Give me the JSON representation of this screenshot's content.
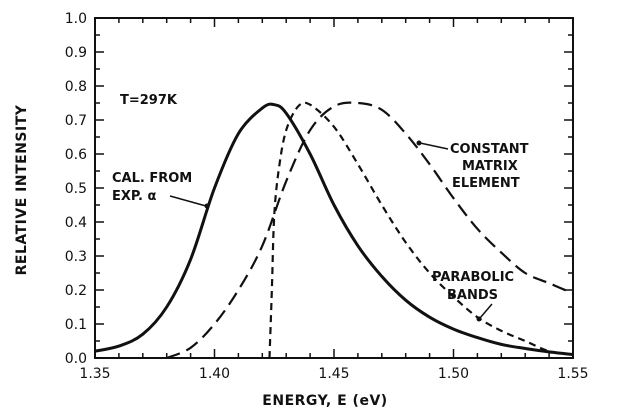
{
  "chart_data": {
    "type": "line",
    "xlabel": "ENERGY, E (eV)",
    "ylabel": "RELATIVE INTENSITY",
    "xlim": [
      1.35,
      1.55
    ],
    "ylim": [
      0.0,
      1.0
    ],
    "xticks": [
      "1.35",
      "1.40",
      "1.45",
      "1.50",
      "1.55"
    ],
    "yticks": [
      "0.0",
      "0.1",
      "0.2",
      "0.3",
      "0.4",
      "0.5",
      "0.6",
      "0.7",
      "0.8",
      "0.9",
      "1.0"
    ],
    "grid": false,
    "annotations": {
      "temperature": "T=297K",
      "cal_from_1": "CAL. FROM",
      "cal_from_2": "EXP. α",
      "constant_1": "CONSTANT",
      "constant_2": "MATRIX",
      "constant_3": "ELEMENT",
      "parabolic_1": "PARABOLIC",
      "parabolic_2": "BANDS"
    },
    "series": [
      {
        "style": "solid",
        "x": [
          1.35,
          1.36,
          1.37,
          1.38,
          1.39,
          1.4,
          1.41,
          1.42,
          1.425,
          1.43,
          1.44,
          1.45,
          1.46,
          1.47,
          1.48,
          1.49,
          1.5,
          1.51,
          1.52,
          1.53,
          1.54,
          1.55
        ],
        "y": [
          0.02,
          0.035,
          0.07,
          0.15,
          0.29,
          0.5,
          0.66,
          0.735,
          0.745,
          0.72,
          0.6,
          0.45,
          0.33,
          0.24,
          0.17,
          0.12,
          0.085,
          0.06,
          0.04,
          0.028,
          0.018,
          0.01
        ]
      },
      {
        "style": "short-dash",
        "x": [
          1.423,
          1.424,
          1.425,
          1.427,
          1.43,
          1.435,
          1.44,
          1.45,
          1.46,
          1.47,
          1.48,
          1.49,
          1.5,
          1.51,
          1.52,
          1.53,
          1.54,
          1.55
        ],
        "y": [
          0.0,
          0.2,
          0.42,
          0.56,
          0.67,
          0.74,
          0.745,
          0.68,
          0.57,
          0.45,
          0.34,
          0.25,
          0.18,
          0.12,
          0.08,
          0.05,
          0.02,
          0.01
        ]
      },
      {
        "style": "long-dash",
        "x": [
          1.38,
          1.39,
          1.4,
          1.41,
          1.42,
          1.43,
          1.44,
          1.45,
          1.46,
          1.47,
          1.48,
          1.49,
          1.5,
          1.51,
          1.52,
          1.53,
          1.54,
          1.55
        ],
        "y": [
          0.0,
          0.03,
          0.1,
          0.2,
          0.33,
          0.52,
          0.67,
          0.74,
          0.75,
          0.73,
          0.66,
          0.57,
          0.47,
          0.38,
          0.31,
          0.25,
          0.22,
          0.19
        ]
      }
    ]
  }
}
